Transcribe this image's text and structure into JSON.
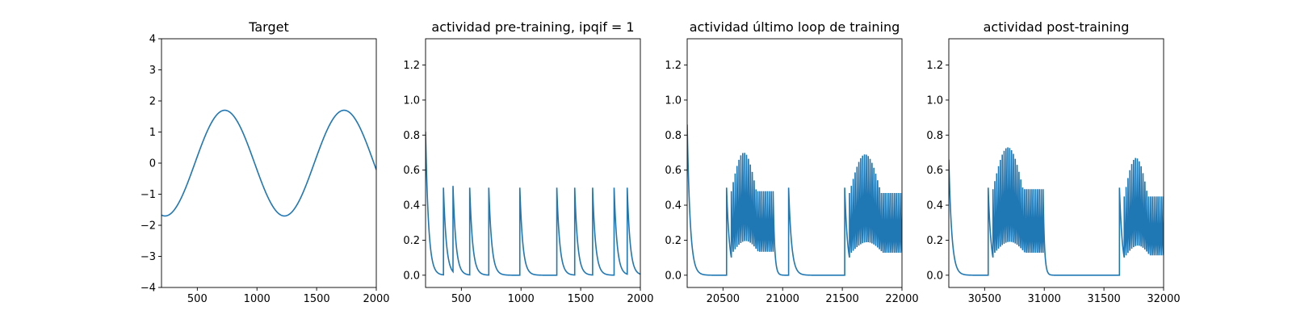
{
  "chart_data": [
    {
      "type": "line",
      "title": "Target",
      "xlim": [
        200,
        2000
      ],
      "ylim": [
        -4,
        4
      ],
      "xticks": [
        500,
        1000,
        1500,
        2000
      ],
      "yticks": [
        -4,
        -3,
        -2,
        -1,
        0,
        1,
        2,
        3,
        4
      ],
      "tick_labels_x": [
        "500",
        "1000",
        "1500",
        "2000"
      ],
      "tick_labels_y": [
        "−4",
        "−3",
        "−2",
        "−1",
        "0",
        "1",
        "2",
        "3",
        "4"
      ],
      "series": [
        {
          "color": "#1f77b4",
          "form": "sine",
          "amplitude": 1.7,
          "period": 1000,
          "peak_x": 730
        }
      ]
    },
    {
      "type": "line",
      "title": "actividad pre-training, ipqif = 1",
      "xlim": [
        200,
        2000
      ],
      "ylim": [
        -0.07,
        1.35
      ],
      "xticks": [
        500,
        1000,
        1500,
        2000
      ],
      "yticks": [
        0.0,
        0.2,
        0.4,
        0.6,
        0.8,
        1.0,
        1.2
      ],
      "tick_labels_x": [
        "500",
        "1000",
        "1500",
        "2000"
      ],
      "tick_labels_y": [
        "0.0",
        "0.2",
        "0.4",
        "0.6",
        "0.8",
        "1.0",
        "1.2"
      ],
      "series": [
        {
          "color": "#1f77b4",
          "form": "spikes",
          "initial": {
            "x": 200,
            "y": 0.82
          },
          "spike_times": [
            350,
            430,
            570,
            730,
            990,
            1300,
            1450,
            1600,
            1780,
            1890
          ],
          "spike_heights": [
            0.5,
            0.51,
            0.5,
            0.5,
            0.5,
            0.5,
            0.5,
            0.5,
            0.5,
            0.5
          ],
          "decay": 25
        }
      ]
    },
    {
      "type": "line",
      "title": "actividad último loop de training",
      "xlim": [
        20200,
        22000
      ],
      "ylim": [
        -0.07,
        1.35
      ],
      "xticks": [
        20500,
        21000,
        21500,
        22000
      ],
      "yticks": [
        0.0,
        0.2,
        0.4,
        0.6,
        0.8,
        1.0,
        1.2
      ],
      "tick_labels_x": [
        "20500",
        "21000",
        "21500",
        "22000"
      ],
      "tick_labels_y": [
        "0.0",
        "0.2",
        "0.4",
        "0.6",
        "0.8",
        "1.0",
        "1.2"
      ],
      "series": [
        {
          "color": "#1f77b4",
          "form": "bursts",
          "initial": {
            "x": 20200,
            "y": 0.86
          },
          "decay": 25,
          "bursts": [
            {
              "first_spike": 20530,
              "first_height": 0.5,
              "dense_start": 20570,
              "dense_end": 20920,
              "peak_height": 0.7,
              "trough_height": 0.21
            },
            {
              "first_spike": 21520,
              "first_height": 0.5,
              "dense_start": 21560,
              "dense_end": 22000,
              "peak_height": 0.69,
              "trough_height": 0.2
            }
          ],
          "isolated_spikes": [
            {
              "x": 21050,
              "y": 0.5
            }
          ]
        }
      ]
    },
    {
      "type": "line",
      "title": "actividad post-training",
      "xlim": [
        30200,
        32000
      ],
      "ylim": [
        -0.07,
        1.35
      ],
      "xticks": [
        30500,
        31000,
        31500,
        32000
      ],
      "yticks": [
        0.0,
        0.2,
        0.4,
        0.6,
        0.8,
        1.0,
        1.2
      ],
      "tick_labels_x": [
        "30500",
        "31000",
        "31500",
        "32000"
      ],
      "tick_labels_y": [
        "0.0",
        "0.2",
        "0.4",
        "0.6",
        "0.8",
        "1.0",
        "1.2"
      ],
      "series": [
        {
          "color": "#1f77b4",
          "form": "bursts",
          "initial": {
            "x": 30200,
            "y": 0.66
          },
          "decay": 25,
          "bursts": [
            {
              "first_spike": 30530,
              "first_height": 0.5,
              "dense_start": 30570,
              "dense_end": 30990,
              "peak_height": 0.73,
              "trough_height": 0.2
            },
            {
              "first_spike": 31630,
              "first_height": 0.5,
              "dense_start": 31670,
              "dense_end": 32000,
              "peak_height": 0.67,
              "trough_height": 0.18
            }
          ],
          "isolated_spikes": []
        }
      ]
    }
  ]
}
